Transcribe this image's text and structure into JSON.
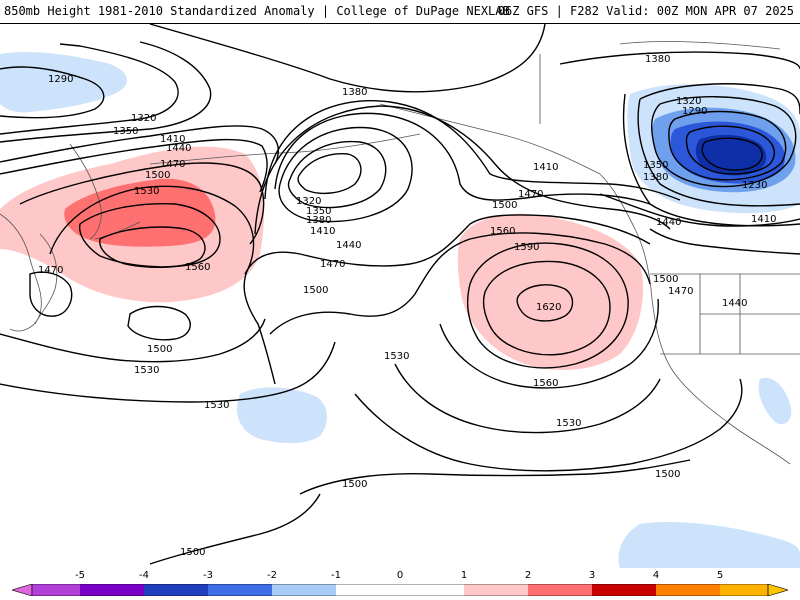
{
  "header": {
    "left": "850mb Height 1981-2010 Standardized Anomaly | College of DuPage NEXLAB",
    "right": "06Z GFS | F282 Valid: 00Z MON APR 07 2025"
  },
  "contour_labels": [
    {
      "id": "1290-nw",
      "text": "1290"
    },
    {
      "id": "1380-top",
      "text": "1380"
    },
    {
      "id": "1320-w",
      "text": "1320"
    },
    {
      "id": "1350-w",
      "text": "1350"
    },
    {
      "id": "1410-w",
      "text": "1410"
    },
    {
      "id": "1440-w",
      "text": "1440"
    },
    {
      "id": "1470-w",
      "text": "1470"
    },
    {
      "id": "1500-w",
      "text": "1500"
    },
    {
      "id": "1530-w",
      "text": "1530"
    },
    {
      "id": "1560-w",
      "text": "1560"
    },
    {
      "id": "1470-far-w",
      "text": "1470"
    },
    {
      "id": "1500-w-low",
      "text": "1500"
    },
    {
      "id": "1530-w-low",
      "text": "1530"
    },
    {
      "id": "1530-w-lower",
      "text": "1530"
    },
    {
      "id": "1320-c",
      "text": "1320"
    },
    {
      "id": "1350-c",
      "text": "1350"
    },
    {
      "id": "1380-c",
      "text": "1380"
    },
    {
      "id": "1410-c",
      "text": "1410"
    },
    {
      "id": "1440-c",
      "text": "1440"
    },
    {
      "id": "1470-c",
      "text": "1470"
    },
    {
      "id": "1500-c",
      "text": "1500"
    },
    {
      "id": "1530-c",
      "text": "1530"
    },
    {
      "id": "1410-ce",
      "text": "1410"
    },
    {
      "id": "1470-ce",
      "text": "1470"
    },
    {
      "id": "1500-ce",
      "text": "1500"
    },
    {
      "id": "1560-ce",
      "text": "1560"
    },
    {
      "id": "1590-ce",
      "text": "1590"
    },
    {
      "id": "1620-ce",
      "text": "1620"
    },
    {
      "id": "1560-ce-low",
      "text": "1560"
    },
    {
      "id": "1530-ce-low",
      "text": "1530"
    },
    {
      "id": "1500-ce-low",
      "text": "1500"
    },
    {
      "id": "1500-s",
      "text": "1500"
    },
    {
      "id": "1500-sw",
      "text": "1500"
    },
    {
      "id": "1380-ne",
      "text": "1380"
    },
    {
      "id": "1320-ne",
      "text": "1320"
    },
    {
      "id": "1290-ne",
      "text": "1290"
    },
    {
      "id": "1350-ne",
      "text": "1350"
    },
    {
      "id": "1380-ne2",
      "text": "1380"
    },
    {
      "id": "1230-ne",
      "text": "1230"
    },
    {
      "id": "1410-ne",
      "text": "1410"
    },
    {
      "id": "1440-coast",
      "text": "1440"
    },
    {
      "id": "1500-coast",
      "text": "1500"
    },
    {
      "id": "1470-land",
      "text": "1470"
    },
    {
      "id": "1440-land",
      "text": "1440"
    }
  ],
  "colorbar": {
    "ticks": [
      "-5",
      "-4",
      "-3",
      "-2",
      "-1",
      "0",
      "1",
      "2",
      "3",
      "4",
      "5"
    ],
    "colors": {
      "neg5": "#e066e0",
      "neg4": "#7a00c8",
      "neg3": "#1f3fbf",
      "neg2": "#3f6fe6",
      "neg1": "#a8cdf7",
      "neg05": "#d4e6fb",
      "zero": "#ffffff",
      "pos05": "#ffd6d6",
      "pos1": "#ffb3b3",
      "pos2": "#ff6f6f",
      "pos3": "#c80000",
      "pos4": "#ff7f00",
      "pos5": "#ffb300"
    }
  },
  "anomaly_colors": {
    "positive_weak": "#ffc8c8",
    "positive_strong": "#ff7070",
    "negative_weak": "#cce3fb",
    "negative_mid": "#6fa0ee",
    "negative_strong": "#2b57d8",
    "negative_core": "#0e2fa8"
  }
}
